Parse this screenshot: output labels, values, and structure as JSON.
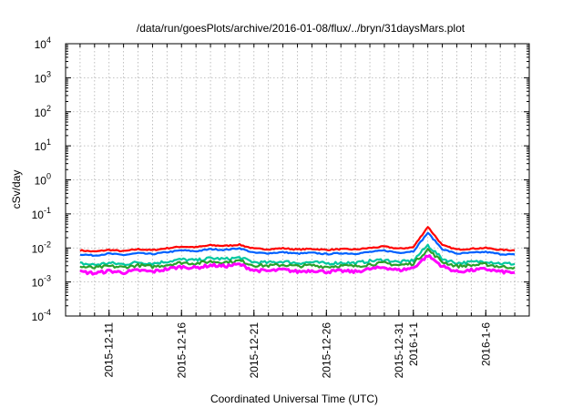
{
  "chart_data": {
    "type": "line",
    "title": "/data/run/goesPlots/archive/2016-01-08/flux/../bryn/31daysMars.plot",
    "xlabel": "Coordinated Universal Time (UTC)",
    "ylabel": "cSv/day",
    "yscale": "log",
    "ylim": [
      0.0001,
      10000
    ],
    "xlim": [
      "2015-12-08",
      "2016-01-09"
    ],
    "grid": true,
    "y_ticks": [
      {
        "base": "10",
        "exp": "-4"
      },
      {
        "base": "10",
        "exp": "-3"
      },
      {
        "base": "10",
        "exp": "-2"
      },
      {
        "base": "10",
        "exp": "-1"
      },
      {
        "base": "10",
        "exp": "0"
      },
      {
        "base": "10",
        "exp": "1"
      },
      {
        "base": "10",
        "exp": "2"
      },
      {
        "base": "10",
        "exp": "3"
      },
      {
        "base": "10",
        "exp": "4"
      }
    ],
    "x_ticks": [
      {
        "date": "2015-12-11",
        "label": "2015-12-11"
      },
      {
        "date": "2015-12-16",
        "label": "2015-12-16"
      },
      {
        "date": "2015-12-21",
        "label": "2015-12-21"
      },
      {
        "date": "2015-12-26",
        "label": "2015-12-26"
      },
      {
        "date": "2015-12-31",
        "label": "2015-12-31"
      },
      {
        "date": "2016-01-01",
        "label": "2016-1-1"
      },
      {
        "date": "2016-01-06",
        "label": "2016-1-6"
      }
    ],
    "x_dates": [
      "2015-12-09",
      "2015-12-10",
      "2015-12-11",
      "2015-12-12",
      "2015-12-13",
      "2015-12-14",
      "2015-12-15",
      "2015-12-16",
      "2015-12-17",
      "2015-12-18",
      "2015-12-19",
      "2015-12-20",
      "2015-12-21",
      "2015-12-22",
      "2015-12-23",
      "2015-12-24",
      "2015-12-25",
      "2015-12-26",
      "2015-12-27",
      "2015-12-28",
      "2015-12-29",
      "2015-12-30",
      "2015-12-31",
      "2016-01-01",
      "2016-01-02",
      "2016-01-03",
      "2016-01-04",
      "2016-01-05",
      "2016-01-06",
      "2016-01-07",
      "2016-01-08"
    ],
    "series": [
      {
        "color": "#ff0000",
        "values": [
          0.0085,
          0.0078,
          0.0088,
          0.008,
          0.0092,
          0.0086,
          0.0098,
          0.011,
          0.0105,
          0.012,
          0.0115,
          0.0125,
          0.0095,
          0.0092,
          0.0098,
          0.009,
          0.0094,
          0.0088,
          0.0092,
          0.009,
          0.01,
          0.011,
          0.0095,
          0.0105,
          0.042,
          0.012,
          0.009,
          0.0095,
          0.01,
          0.0088,
          0.0085
        ]
      },
      {
        "color": "#0060ff",
        "values": [
          0.0065,
          0.006,
          0.0068,
          0.0062,
          0.007,
          0.0066,
          0.0075,
          0.0085,
          0.008,
          0.0092,
          0.0088,
          0.0098,
          0.0072,
          0.007,
          0.0075,
          0.0068,
          0.0072,
          0.0066,
          0.007,
          0.0068,
          0.0076,
          0.0084,
          0.0072,
          0.008,
          0.028,
          0.0092,
          0.0068,
          0.0072,
          0.0076,
          0.0066,
          0.0064
        ]
      },
      {
        "color": "#00c8a0",
        "values": [
          0.0035,
          0.0032,
          0.0036,
          0.0033,
          0.0038,
          0.0035,
          0.004,
          0.0046,
          0.0043,
          0.005,
          0.0047,
          0.0052,
          0.0038,
          0.0037,
          0.004,
          0.0036,
          0.0038,
          0.0035,
          0.0037,
          0.0036,
          0.0041,
          0.0045,
          0.0038,
          0.0043,
          0.012,
          0.0048,
          0.0036,
          0.0038,
          0.0041,
          0.0035,
          0.0034
        ]
      },
      {
        "color": "#2aa02a",
        "values": [
          0.0028,
          0.0026,
          0.0029,
          0.0027,
          0.0031,
          0.0028,
          0.0032,
          0.0037,
          0.0035,
          0.004,
          0.0038,
          0.0042,
          0.0031,
          0.003,
          0.0032,
          0.0029,
          0.0031,
          0.0028,
          0.003,
          0.0029,
          0.0033,
          0.0036,
          0.0031,
          0.0035,
          0.009,
          0.0039,
          0.0029,
          0.0031,
          0.0033,
          0.0028,
          0.0027
        ]
      },
      {
        "color": "#ff00ff",
        "values": [
          0.002,
          0.0018,
          0.0021,
          0.0019,
          0.0022,
          0.002,
          0.0024,
          0.0028,
          0.0026,
          0.0031,
          0.0029,
          0.0033,
          0.0022,
          0.0021,
          0.0023,
          0.002,
          0.0022,
          0.002,
          0.0021,
          0.002,
          0.0024,
          0.0027,
          0.0022,
          0.0026,
          0.006,
          0.0029,
          0.002,
          0.0022,
          0.0024,
          0.002,
          0.0019
        ]
      }
    ]
  }
}
